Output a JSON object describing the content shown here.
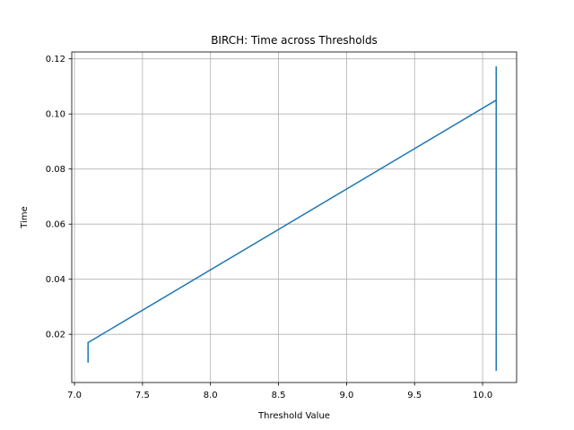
{
  "chart_data": {
    "type": "line",
    "title": "BIRCH: Time across Thresholds",
    "xlabel": "Threshold Value",
    "ylabel": "Time",
    "xlim": [
      6.98,
      10.25
    ],
    "ylim": [
      0.0025,
      0.1225
    ],
    "x_ticks": [
      7.0,
      7.5,
      8.0,
      8.5,
      9.0,
      9.5,
      10.0
    ],
    "x_tick_labels": [
      "7.0",
      "7.5",
      "8.0",
      "8.5",
      "9.0",
      "9.5",
      "10.0"
    ],
    "y_ticks": [
      0.02,
      0.04,
      0.06,
      0.08,
      0.1,
      0.12
    ],
    "y_tick_labels": [
      "0.02",
      "0.04",
      "0.06",
      "0.08",
      "0.10",
      "0.12"
    ],
    "grid": true,
    "series": [
      {
        "color": "#1f77b4",
        "x": [
          7.1,
          7.1,
          7.1,
          7.1,
          7.1,
          10.1,
          10.1,
          10.1,
          10.1,
          10.1,
          10.1,
          10.1
        ],
        "y": [
          0.01,
          0.013,
          0.011,
          0.015,
          0.017,
          0.105,
          0.117,
          0.008,
          0.11,
          0.012,
          0.115,
          0.007
        ]
      }
    ]
  }
}
